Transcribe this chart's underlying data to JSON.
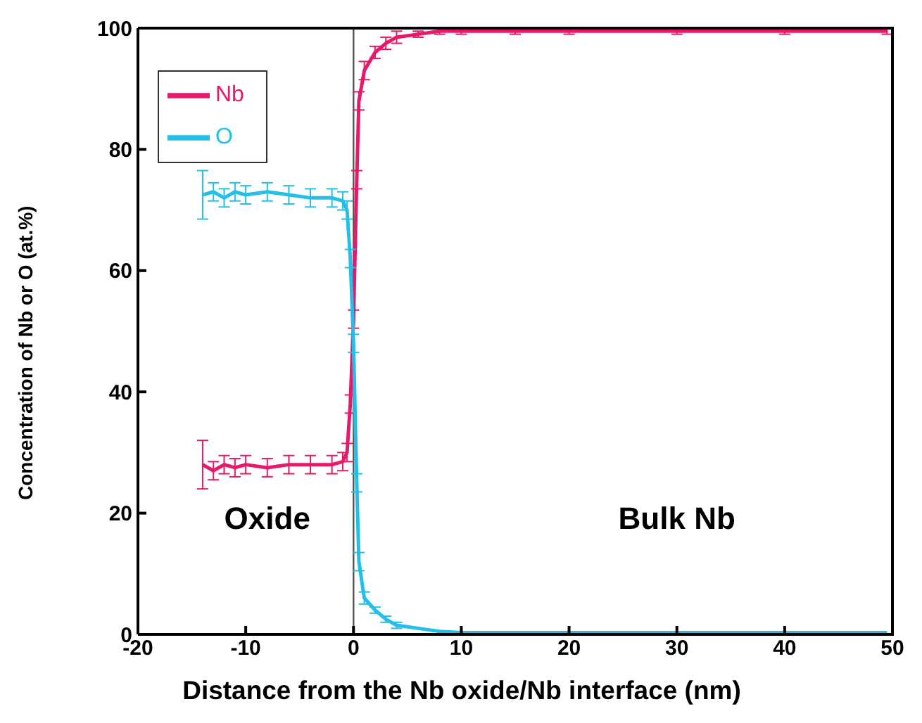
{
  "chart_data": {
    "type": "line",
    "xlabel": "Distance from the Nb oxide/Nb interface (nm)",
    "ylabel": "Concentration of Nb or O (at.%)",
    "x": [
      -14,
      -13,
      -12,
      -11,
      -10,
      -8,
      -6,
      -4,
      -2,
      -1,
      -0.6,
      -0.3,
      0,
      0.3,
      0.5,
      1,
      2,
      3,
      4,
      6,
      8,
      10,
      15,
      20,
      30,
      40,
      49.5
    ],
    "series": [
      {
        "name": "Nb",
        "color": "#e8196a",
        "values": [
          28,
          27,
          28,
          27.5,
          28,
          27.5,
          28,
          28,
          28,
          28.5,
          30,
          38,
          52,
          75,
          88,
          93,
          96,
          97.5,
          98.5,
          99,
          99.5,
          99.5,
          99.5,
          99.5,
          99.5,
          99.5,
          99.5
        ],
        "errors": [
          4,
          1.5,
          1.5,
          1.5,
          1.5,
          1.5,
          1.5,
          1.5,
          1.5,
          1.5,
          1.5,
          1.5,
          1.5,
          1.5,
          1.5,
          1.5,
          1,
          1,
          1,
          0.5,
          0.5,
          0.5,
          0.5,
          0.5,
          0.5,
          0.5,
          0.5
        ]
      },
      {
        "name": "O",
        "color": "#22c0e8",
        "values": [
          72.5,
          73,
          72,
          73,
          72.5,
          73,
          72.5,
          72,
          72,
          71.5,
          70,
          62,
          48,
          25,
          12,
          6,
          4,
          2.5,
          1.5,
          1,
          0.5,
          0.3,
          0.3,
          0.3,
          0.3,
          0.3,
          0.3
        ],
        "errors": [
          4,
          1.5,
          1.5,
          1.5,
          1.5,
          1.5,
          1.5,
          1.5,
          1.5,
          1.5,
          1.5,
          1.5,
          1.5,
          1.5,
          1.5,
          1,
          0.5,
          0.5,
          0.5,
          null,
          null,
          null,
          null,
          null,
          null,
          null,
          null
        ]
      }
    ],
    "xlim": [
      -20,
      50
    ],
    "xticks": [
      -20,
      -10,
      0,
      10,
      20,
      30,
      40,
      50
    ],
    "ylim": [
      0,
      100
    ],
    "yticks": [
      0,
      20,
      40,
      60,
      80,
      100
    ],
    "ref_lines": [
      {
        "axis": "x",
        "value": 0,
        "color": "#555555"
      }
    ],
    "annotations": [
      "Oxide",
      "Bulk Nb"
    ],
    "legend": "top left",
    "grid": false,
    "marker": "none"
  }
}
